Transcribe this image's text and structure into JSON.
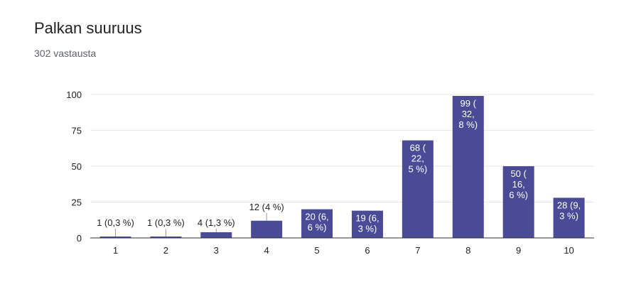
{
  "header": {
    "title": "Palkan suuruus",
    "responses": "302 vastausta"
  },
  "chart_data": {
    "type": "bar",
    "categories": [
      "1",
      "2",
      "3",
      "4",
      "5",
      "6",
      "7",
      "8",
      "9",
      "10"
    ],
    "values": [
      1,
      1,
      4,
      12,
      20,
      19,
      68,
      99,
      50,
      28
    ],
    "data_labels": [
      [
        "1 (0,3 %)"
      ],
      [
        "1 (0,3 %)"
      ],
      [
        "4 (1,3 %)"
      ],
      [
        "12 (4 %)"
      ],
      [
        "20 (6,",
        "6 %)"
      ],
      [
        "19 (6,",
        "3 %)"
      ],
      [
        "68 (",
        "22,",
        "5 %)"
      ],
      [
        "99 (",
        "32,",
        "8 %)"
      ],
      [
        "50 (",
        "16,",
        "6 %)"
      ],
      [
        "28 (9,",
        "3 %)"
      ]
    ],
    "label_inside": [
      false,
      false,
      false,
      false,
      true,
      true,
      true,
      true,
      true,
      true
    ],
    "yticks": [
      0,
      25,
      50,
      75,
      100
    ],
    "ylim": [
      0,
      100
    ],
    "bar_color": "#4a4a97",
    "grid": true
  }
}
